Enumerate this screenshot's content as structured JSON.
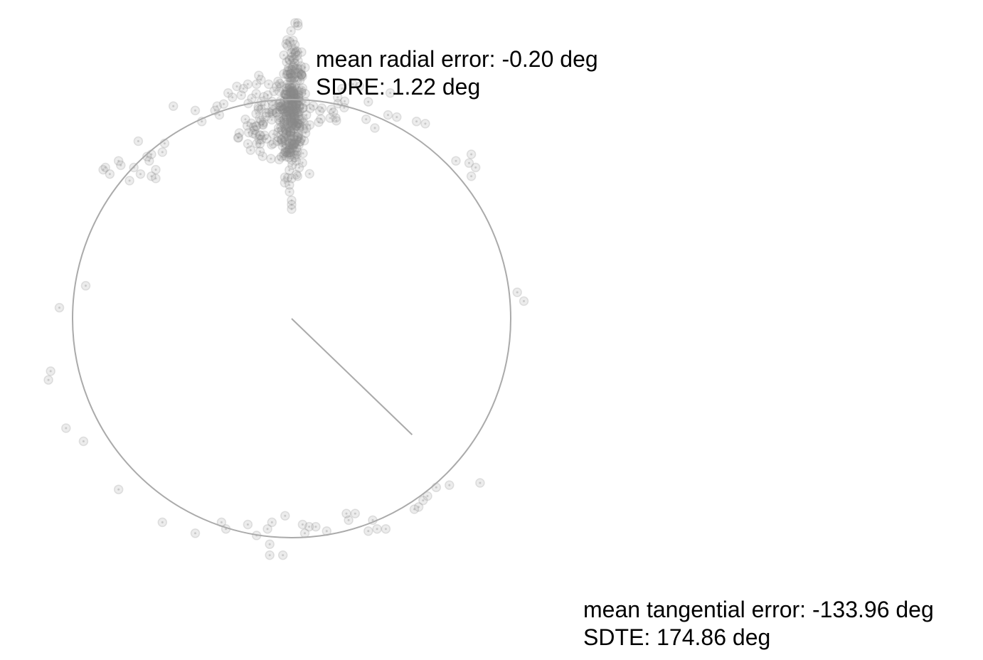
{
  "chart_data": {
    "type": "scatter",
    "title": "",
    "xlabel": "",
    "ylabel": "",
    "grid": false,
    "axes_visible": false,
    "colors": {
      "points": "#8a8a8a",
      "reference_circle": "#aaaaaa",
      "mean_line": "#aaaaaa",
      "text": "#000000"
    },
    "reference_circle": {
      "center": [
        0,
        0
      ],
      "radius_deg": 10
    },
    "mean_direction_line": {
      "from": [
        0,
        0
      ],
      "to": [
        5.5,
        -5.3
      ]
    },
    "annotations": {
      "radial": {
        "mean_label": "mean radial error: -0.20 deg",
        "sd_label": "SDRE: 1.22 deg"
      },
      "tangential": {
        "mean_label": "mean tangential error: -133.96 deg",
        "sd_label": "SDTE: 174.86 deg"
      }
    },
    "clusters": [
      {
        "cx": 0.0,
        "cy": 9.2,
        "sx": 0.3,
        "sy": 1.3,
        "n": 260
      },
      {
        "cx": 0.1,
        "cy": 11.4,
        "sx": 0.2,
        "sy": 0.9,
        "n": 50
      },
      {
        "cx": -1.0,
        "cy": 9.4,
        "sx": 0.7,
        "sy": 0.5,
        "n": 45
      },
      {
        "cx": -1.4,
        "cy": 8.3,
        "sx": 0.5,
        "sy": 0.6,
        "n": 28
      },
      {
        "cx": 1.3,
        "cy": 9.3,
        "sx": 0.7,
        "sy": 0.4,
        "n": 16
      }
    ],
    "points": [
      [
        0.0,
        5.0
      ],
      [
        0.0,
        5.2
      ],
      [
        0.0,
        5.4
      ],
      [
        -0.1,
        6.1
      ],
      [
        0.0,
        6.4
      ],
      [
        -1.5,
        11.1
      ],
      [
        -1.4,
        10.9
      ],
      [
        -1.6,
        10.7
      ],
      [
        -2.0,
        10.7
      ],
      [
        -2.2,
        10.5
      ],
      [
        -2.5,
        10.6
      ],
      [
        -2.3,
        10.2
      ],
      [
        -2.7,
        10.1
      ],
      [
        -2.9,
        10.3
      ],
      [
        -3.1,
        9.8
      ],
      [
        -3.3,
        9.3
      ],
      [
        -3.4,
        9.7
      ],
      [
        -3.5,
        9.5
      ],
      [
        -4.4,
        9.5
      ],
      [
        -4.1,
        9.0
      ],
      [
        -5.8,
        8.0
      ],
      [
        -5.9,
        7.6
      ],
      [
        -6.4,
        6.5
      ],
      [
        -6.2,
        6.8
      ],
      [
        -6.5,
        7.2
      ],
      [
        -6.4,
        7.5
      ],
      [
        -6.6,
        7.4
      ],
      [
        -7.2,
        6.9
      ],
      [
        -7.8,
        7.0
      ],
      [
        -7.9,
        7.2
      ],
      [
        -6.9,
        6.6
      ],
      [
        -8.5,
        6.9
      ],
      [
        -8.3,
        6.6
      ],
      [
        -8.6,
        6.8
      ],
      [
        -6.2,
        6.4
      ],
      [
        -9.4,
        1.5
      ],
      [
        -10.6,
        0.5
      ],
      [
        -11.0,
        -2.4
      ],
      [
        -11.1,
        -2.8
      ],
      [
        -10.3,
        -5.0
      ],
      [
        -9.5,
        -5.6
      ],
      [
        -7.9,
        -7.8
      ],
      [
        -5.9,
        -9.3
      ],
      [
        -4.4,
        -9.8
      ],
      [
        -3.0,
        -9.6
      ],
      [
        -3.2,
        -9.3
      ],
      [
        -2.0,
        -9.4
      ],
      [
        -1.6,
        -9.9
      ],
      [
        -1.1,
        -9.6
      ],
      [
        -0.9,
        -9.3
      ],
      [
        -1.0,
        -10.3
      ],
      [
        -0.3,
        -9.0
      ],
      [
        -0.4,
        -10.8
      ],
      [
        -1.0,
        -10.8
      ],
      [
        0.5,
        -9.4
      ],
      [
        0.6,
        -9.8
      ],
      [
        0.8,
        -9.5
      ],
      [
        1.1,
        -9.5
      ],
      [
        1.6,
        -9.7
      ],
      [
        2.5,
        -8.9
      ],
      [
        2.6,
        -9.2
      ],
      [
        2.9,
        -8.9
      ],
      [
        3.5,
        -9.7
      ],
      [
        3.7,
        -9.2
      ],
      [
        3.9,
        -9.6
      ],
      [
        4.3,
        -9.6
      ],
      [
        5.6,
        -8.7
      ],
      [
        5.8,
        -8.6
      ],
      [
        6.0,
        -8.3
      ],
      [
        6.2,
        -8.1
      ],
      [
        6.6,
        -7.7
      ],
      [
        7.2,
        -7.6
      ],
      [
        8.6,
        -7.5
      ],
      [
        10.3,
        1.2
      ],
      [
        10.6,
        0.8
      ],
      [
        8.2,
        7.5
      ],
      [
        8.2,
        6.5
      ],
      [
        8.1,
        7.1
      ],
      [
        8.4,
        6.9
      ],
      [
        7.5,
        7.2
      ],
      [
        6.1,
        8.9
      ],
      [
        5.7,
        9.0
      ],
      [
        4.8,
        9.2
      ],
      [
        4.4,
        9.3
      ],
      [
        3.8,
        8.7
      ],
      [
        3.4,
        9.1
      ],
      [
        3.5,
        9.9
      ],
      [
        4.5,
        10.3
      ],
      [
        2.8,
        10.7
      ],
      [
        2.3,
        10.5
      ],
      [
        2.1,
        10.1
      ],
      [
        3.1,
        10.6
      ],
      [
        -5.4,
        9.7
      ],
      [
        -7.0,
        8.1
      ],
      [
        -7.4,
        6.3
      ]
    ]
  },
  "theme": {
    "background": "#ffffff"
  }
}
